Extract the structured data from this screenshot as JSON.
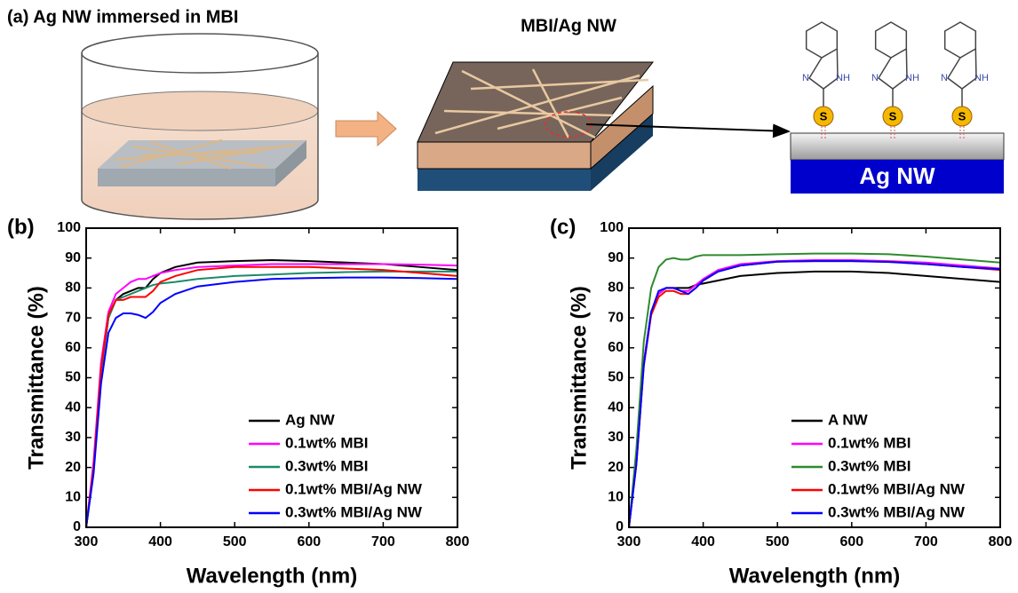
{
  "schematic": {
    "left_title": "(a) Ag NW immersed in MBI",
    "middle_title": "MBI/Ag NW",
    "substrate_label": "Ag NW",
    "atom_n": "N",
    "atom_nh": "NH",
    "atom_s": "S"
  },
  "chart_data": [
    {
      "type": "line",
      "panel_label": "(b)",
      "xlabel": "Wavelength (nm)",
      "ylabel": "Transmittance (%)",
      "x": [
        300,
        310,
        320,
        330,
        340,
        350,
        360,
        370,
        380,
        390,
        400,
        420,
        450,
        500,
        550,
        600,
        650,
        700,
        750,
        800
      ],
      "xlim": [
        300,
        800
      ],
      "xticks": [
        300,
        400,
        500,
        600,
        700,
        800
      ],
      "ylim": [
        0,
        100
      ],
      "yticks": [
        0,
        10,
        20,
        30,
        40,
        50,
        60,
        70,
        80,
        90,
        100
      ],
      "legend": "lower right",
      "series": [
        {
          "name": "Ag NW",
          "color": "#000000",
          "values": [
            0,
            20,
            52,
            70,
            76,
            78,
            79,
            80,
            80,
            83,
            85,
            87,
            88.5,
            89,
            89.3,
            89,
            88.5,
            88,
            87,
            86
          ]
        },
        {
          "name": "0.1wt% MBI",
          "color": "#ff00ff",
          "values": [
            0,
            22,
            55,
            72,
            78,
            80,
            82,
            83,
            83,
            84,
            85,
            86,
            87,
            87.5,
            88,
            88,
            88,
            88,
            87.8,
            87.5
          ]
        },
        {
          "name": "0.3wt% MBI",
          "color": "#1b8a6b",
          "values": [
            0,
            20,
            52,
            70,
            76,
            77,
            78,
            79,
            80,
            81,
            81.5,
            82,
            83,
            84,
            84.5,
            85,
            85.3,
            85.5,
            85.5,
            85.5
          ]
        },
        {
          "name": "0.1wt% MBI/Ag NW",
          "color": "#ff0000",
          "values": [
            0,
            20,
            53,
            71,
            76,
            76,
            77,
            77,
            77,
            79,
            82,
            84,
            86,
            87,
            87,
            87,
            86.5,
            86,
            85,
            84
          ]
        },
        {
          "name": "0.3wt% MBI/Ag NW",
          "color": "#0000ff",
          "values": [
            0,
            18,
            48,
            65,
            70,
            71.5,
            71.5,
            71,
            70,
            72,
            75,
            78,
            80.5,
            82,
            83,
            83.3,
            83.5,
            83.5,
            83.3,
            83
          ]
        }
      ]
    },
    {
      "type": "line",
      "panel_label": "(c)",
      "xlabel": "Wavelength (nm)",
      "ylabel": "Transmittance (%)",
      "x": [
        300,
        310,
        320,
        330,
        340,
        350,
        360,
        370,
        380,
        390,
        400,
        420,
        450,
        500,
        550,
        600,
        650,
        700,
        750,
        800
      ],
      "xlim": [
        300,
        800
      ],
      "xticks": [
        300,
        400,
        500,
        600,
        700,
        800
      ],
      "ylim": [
        0,
        100
      ],
      "yticks": [
        0,
        10,
        20,
        30,
        40,
        50,
        60,
        70,
        80,
        90,
        100
      ],
      "legend": "lower right",
      "series": [
        {
          "name": "A NW",
          "color": "#000000",
          "values": [
            0,
            22,
            55,
            72,
            78,
            80,
            80,
            80,
            80,
            81,
            81.5,
            82.5,
            84,
            85,
            85.5,
            85.5,
            85,
            84,
            83,
            82
          ]
        },
        {
          "name": "0.1wt% MBI",
          "color": "#ff00ff",
          "values": [
            0,
            22,
            55,
            72,
            78,
            80,
            80,
            79,
            79,
            81,
            83,
            86,
            88,
            89,
            89.3,
            89.3,
            89,
            88.5,
            87.5,
            86.5
          ]
        },
        {
          "name": "0.3wt% MBI",
          "color": "#2e8b2e",
          "values": [
            0,
            26,
            62,
            80,
            87,
            89.5,
            90,
            89.5,
            89.5,
            90.5,
            91,
            91,
            91,
            91.3,
            91.5,
            91.5,
            91.3,
            90.5,
            89.5,
            88.5
          ]
        },
        {
          "name": "0.1wt% MBI/Ag NW",
          "color": "#ff0000",
          "values": [
            0,
            21,
            54,
            71,
            77,
            79,
            79,
            78,
            78,
            80,
            82.5,
            85.5,
            87.5,
            88.8,
            89,
            89,
            88.8,
            88,
            87,
            86
          ]
        },
        {
          "name": "0.3wt% MBI/Ag NW",
          "color": "#0000ff",
          "values": [
            0,
            21,
            54,
            72,
            79,
            80,
            80,
            79,
            78,
            80,
            82.5,
            85.5,
            87.5,
            88.8,
            89,
            89,
            88.7,
            88,
            87,
            86.3
          ]
        }
      ]
    }
  ]
}
